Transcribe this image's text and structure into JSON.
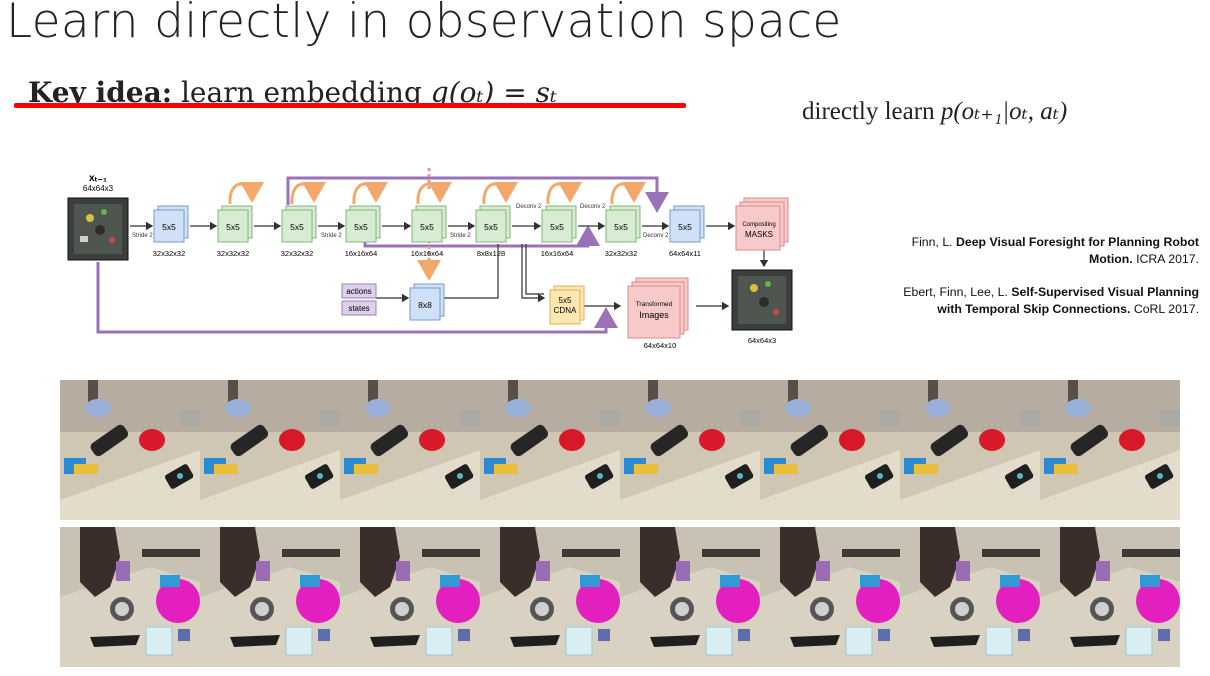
{
  "slide": {
    "title": "Learn directly in observation space",
    "key_idea_label": "Key idea:",
    "key_idea_text": "learn embedding",
    "key_idea_formula": "g(oₜ) = sₜ",
    "directly_text": "directly learn",
    "directly_formula": "p(oₜ₊₁|oₜ, aₜ)"
  },
  "diagram": {
    "input_label": "xₜ₋₁",
    "input_dims": "64x64x3",
    "conv_label": "5x5",
    "conv_dims": [
      "32x32x32",
      "32x32x32",
      "32x32x32",
      "16x16x64",
      "16x16x64",
      "8x8x128",
      "16x16x64",
      "32x32x32",
      "64x64x11"
    ],
    "stride_label": "Stride 2",
    "deconv_label": "Deconv 2",
    "actions_label": "actions",
    "states_label": "states",
    "fc_label": "8x8",
    "cdna_label_1": "5x5",
    "cdna_label_2": "CDNA",
    "transformed_label_1": "Transformed",
    "transformed_label_2": "Images",
    "transformed_dims": "64x64x10",
    "compositing_label_1": "Compositing",
    "compositing_label_2": "MASKS",
    "output_dims": "64x64x3",
    "colors": {
      "conv_blue": "#cfe0f7",
      "conv_green": "#d7ecd2",
      "skip_orange": "#f6c08f",
      "skip_purple": "#9b72b8",
      "cdna_yellow": "#fde7b0",
      "transformed_pink": "#f8c9c9",
      "actions_purple": "#ddd0ea"
    }
  },
  "references": [
    {
      "authors": "Finn, L.",
      "title_line1": "Deep Visual Foresight for Planning Robot",
      "title_line2": "Motion.",
      "venue": "ICRA 2017."
    },
    {
      "authors": "Ebert, Finn, Lee, L.",
      "title_line1": "Self-Supervised Visual Planning",
      "title_line2": "with Temporal Skip Connections.",
      "venue": "CoRL 2017."
    }
  ],
  "strips": {
    "frames_per_row": 8,
    "row_1": {
      "bg": "#cfc6b3",
      "desc": "prediction frames, tabletop with red object"
    },
    "row_2": {
      "bg": "#c9c2b4",
      "desc": "prediction frames, tabletop with magenta object"
    }
  }
}
